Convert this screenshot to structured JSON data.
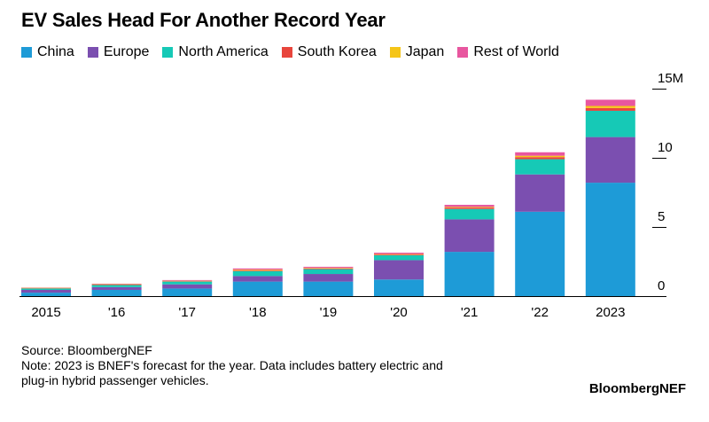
{
  "chart_data": {
    "type": "bar",
    "stacked": true,
    "title": "EV Sales Head For Another Record Year",
    "categories": [
      "2015",
      "'16",
      "'17",
      "'18",
      "'19",
      "'20",
      "'21",
      "'22",
      "2023"
    ],
    "series": [
      {
        "name": "China",
        "color": "#1e9bd7",
        "values": [
          0.25,
          0.45,
          0.55,
          1.05,
          1.05,
          1.2,
          3.2,
          6.1,
          8.2
        ]
      },
      {
        "name": "Europe",
        "color": "#7b4fb0",
        "values": [
          0.2,
          0.2,
          0.3,
          0.4,
          0.55,
          1.4,
          2.35,
          2.7,
          3.3
        ]
      },
      {
        "name": "North America",
        "color": "#16c9b6",
        "values": [
          0.1,
          0.15,
          0.2,
          0.35,
          0.35,
          0.35,
          0.75,
          1.1,
          1.9
        ]
      },
      {
        "name": "South Korea",
        "color": "#e8453c",
        "values": [
          0.02,
          0.03,
          0.03,
          0.05,
          0.05,
          0.05,
          0.1,
          0.15,
          0.2
        ]
      },
      {
        "name": "Japan",
        "color": "#f5c518",
        "values": [
          0.03,
          0.03,
          0.03,
          0.06,
          0.04,
          0.04,
          0.05,
          0.1,
          0.15
        ]
      },
      {
        "name": "Rest of World",
        "color": "#e8569f",
        "values": [
          0.02,
          0.04,
          0.05,
          0.09,
          0.08,
          0.1,
          0.15,
          0.25,
          0.45
        ]
      }
    ],
    "y_axis": {
      "ticks": [
        "0",
        "5",
        "10",
        "15M"
      ],
      "tick_values": [
        0,
        5,
        10,
        15
      ],
      "range": [
        0,
        15
      ],
      "position": "right"
    },
    "legend_position": "top-left",
    "grid": false
  },
  "footer": {
    "source": "Source: BloombergNEF",
    "note_line1": "Note: 2023 is BNEF's forecast for the year. Data includes battery electric and",
    "note_line2": "plug-in hybrid passenger vehicles."
  },
  "brand": "BloombergNEF"
}
